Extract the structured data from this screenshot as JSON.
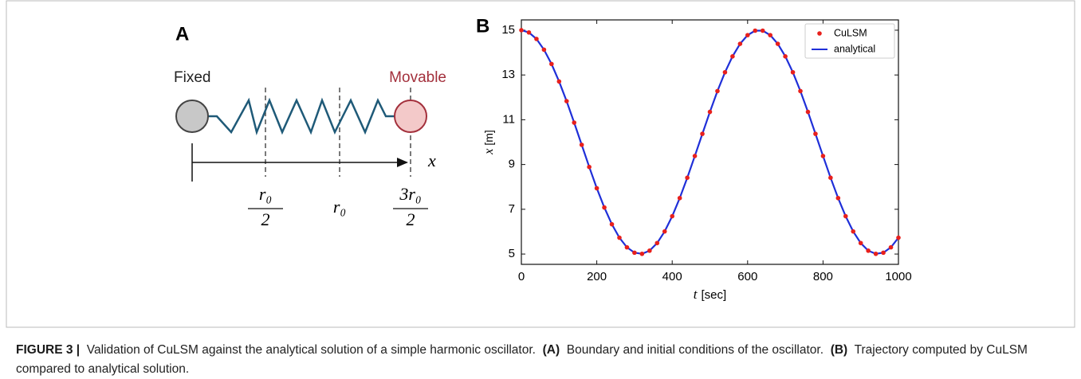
{
  "panel_a": {
    "label": "A",
    "fixed": "Fixed",
    "movable": "Movable",
    "axis_label": "x",
    "positions": [
      {
        "numerator": "r₀",
        "denominator": "2"
      },
      {
        "label": "r₀"
      },
      {
        "numerator": "3r₀",
        "denominator": "2"
      }
    ]
  },
  "chart_data": {
    "type": "line",
    "panel_label": "B",
    "xlabel": {
      "symbol": "t",
      "unit": "[sec]"
    },
    "ylabel": {
      "symbol": "x",
      "unit": "[m]"
    },
    "x": [
      0,
      20,
      40,
      60,
      80,
      100,
      120,
      140,
      160,
      180,
      200,
      220,
      240,
      260,
      280,
      300,
      320,
      340,
      360,
      380,
      400,
      420,
      440,
      460,
      480,
      500,
      520,
      540,
      560,
      580,
      600,
      620,
      640,
      660,
      680,
      700,
      720,
      740,
      760,
      780,
      800,
      820,
      840,
      860,
      880,
      900,
      920,
      940,
      960,
      980,
      1000
    ],
    "series": [
      {
        "name": "CuLSM",
        "color": "#e8201c",
        "style": "dots",
        "values": [
          15.0,
          14.9,
          14.61,
          14.13,
          13.49,
          12.71,
          11.83,
          10.87,
          9.88,
          8.89,
          7.94,
          7.08,
          6.33,
          5.73,
          5.3,
          5.06,
          5.01,
          5.15,
          5.49,
          6.01,
          6.69,
          7.5,
          8.41,
          9.38,
          10.37,
          11.35,
          12.28,
          13.12,
          13.83,
          14.39,
          14.78,
          14.98,
          14.98,
          14.78,
          14.39,
          13.83,
          13.12,
          12.28,
          11.35,
          10.37,
          9.38,
          8.41,
          7.5,
          6.69,
          6.01,
          5.49,
          5.15,
          5.01,
          5.06,
          5.3,
          5.73
        ]
      },
      {
        "name": "analytical",
        "color": "#1f2fd8",
        "style": "line",
        "values": [
          15.0,
          14.9,
          14.61,
          14.13,
          13.49,
          12.71,
          11.83,
          10.87,
          9.88,
          8.89,
          7.94,
          7.08,
          6.33,
          5.73,
          5.3,
          5.06,
          5.01,
          5.15,
          5.49,
          6.01,
          6.69,
          7.5,
          8.41,
          9.38,
          10.37,
          11.35,
          12.28,
          13.12,
          13.83,
          14.39,
          14.78,
          14.98,
          14.98,
          14.78,
          14.39,
          13.83,
          13.12,
          12.28,
          11.35,
          10.37,
          9.38,
          8.41,
          7.5,
          6.69,
          6.01,
          5.49,
          5.15,
          5.01,
          5.06,
          5.3,
          5.73
        ]
      }
    ],
    "xlim": [
      0,
      1000
    ],
    "xticks": [
      0,
      200,
      400,
      600,
      800,
      1000
    ],
    "ylim": [
      4.54,
      15.46
    ],
    "yticks": [
      5,
      7,
      9,
      11,
      13,
      15
    ],
    "legend": "upper-right"
  },
  "caption": {
    "label": "FIGURE 3 |",
    "parts": [
      {
        "text": "Validation of CuLSM against the analytical solution of a simple harmonic oscillator.",
        "bold": false
      },
      {
        "text": "(A)",
        "bold": true
      },
      {
        "text": "Boundary and initial conditions of the oscillator.",
        "bold": false
      },
      {
        "text": "(B)",
        "bold": true
      },
      {
        "text": "Trajectory computed by CuLSM compared to analytical solution.",
        "bold": false
      }
    ]
  }
}
